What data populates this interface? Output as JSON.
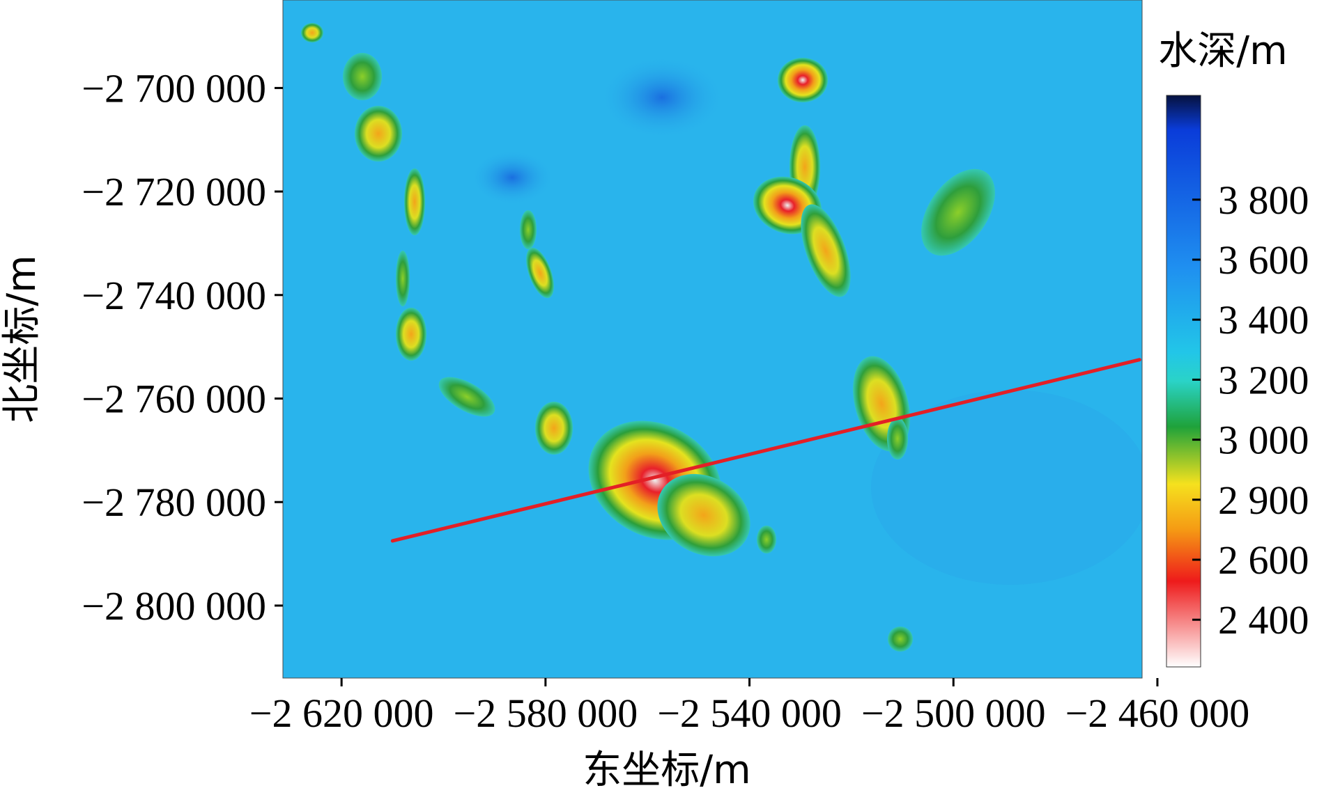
{
  "map": {
    "x_axis_title": "东坐标/m",
    "y_axis_title": "北坐标/m",
    "x_ticks": [
      "−2 620 000",
      "−2 580 000",
      "−2 540 000",
      "−2 500 000",
      "−2 460 000"
    ],
    "x_tick_values": [
      -2620000,
      -2580000,
      -2540000,
      -2500000,
      -2460000
    ],
    "y_ticks": [
      "−2 700 000",
      "−2 720 000",
      "−2 740 000",
      "−2 760 000",
      "−2 780 000",
      "−2 800 000"
    ],
    "y_tick_values": [
      -2700000,
      -2720000,
      -2740000,
      -2760000,
      -2780000,
      -2800000
    ],
    "x_range": [
      -2631500,
      -2463000
    ],
    "y_range": [
      -2683000,
      -2814000
    ],
    "background_color": "#29b4ec",
    "profile_line": {
      "color": "#e31f26",
      "start": [
        -2610000,
        -2787500
      ],
      "end": [
        -2463500,
        -2752500
      ]
    }
  },
  "colorbar": {
    "title": "水深/m",
    "ticks": [
      "3 800",
      "3 600",
      "3 400",
      "3 200",
      "3 000",
      "2 900",
      "2 600",
      "2 400"
    ],
    "colors": [
      "#06123f",
      "#0a3cd9",
      "#1f8ff0",
      "#22c6e8",
      "#2ad3c7",
      "#1fa23a",
      "#f5e11e",
      "#f59a14",
      "#ee1b1b",
      "#ffffff"
    ]
  }
}
